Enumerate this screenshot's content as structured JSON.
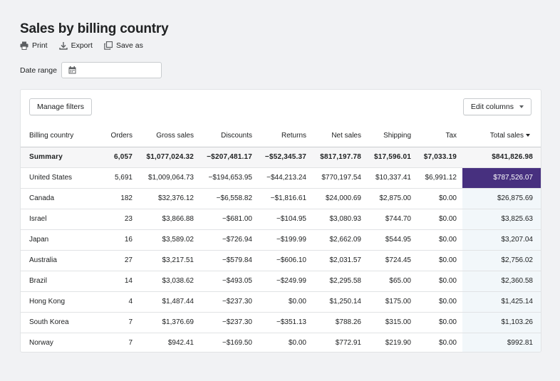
{
  "page": {
    "title": "Sales by billing country"
  },
  "actions": [
    {
      "label": "Print",
      "icon": "printer-icon"
    },
    {
      "label": "Export",
      "icon": "download-icon"
    },
    {
      "label": "Save as",
      "icon": "duplicate-icon"
    }
  ],
  "date_range": {
    "label": "Date range",
    "value": ""
  },
  "toolbar": {
    "manage_filters": "Manage filters",
    "edit_columns": "Edit columns"
  },
  "table": {
    "columns": [
      "Billing country",
      "Orders",
      "Gross sales",
      "Discounts",
      "Returns",
      "Net sales",
      "Shipping",
      "Tax",
      "Total sales"
    ],
    "summary": [
      "Summary",
      "6,057",
      "$1,077,024.32",
      "−$207,481.17",
      "−$52,345.37",
      "$817,197.78",
      "$17,596.01",
      "$7,033.19",
      "$841,826.98"
    ],
    "rows": [
      [
        "United States",
        "5,691",
        "$1,009,064.73",
        "−$194,653.95",
        "−$44,213.24",
        "$770,197.54",
        "$10,337.41",
        "$6,991.12",
        "$787,526.07"
      ],
      [
        "Canada",
        "182",
        "$32,376.12",
        "−$6,558.82",
        "−$1,816.61",
        "$24,000.69",
        "$2,875.00",
        "$0.00",
        "$26,875.69"
      ],
      [
        "Israel",
        "23",
        "$3,866.88",
        "−$681.00",
        "−$104.95",
        "$3,080.93",
        "$744.70",
        "$0.00",
        "$3,825.63"
      ],
      [
        "Japan",
        "16",
        "$3,589.02",
        "−$726.94",
        "−$199.99",
        "$2,662.09",
        "$544.95",
        "$0.00",
        "$3,207.04"
      ],
      [
        "Australia",
        "27",
        "$3,217.51",
        "−$579.84",
        "−$606.10",
        "$2,031.57",
        "$724.45",
        "$0.00",
        "$2,756.02"
      ],
      [
        "Brazil",
        "14",
        "$3,038.62",
        "−$493.05",
        "−$249.99",
        "$2,295.58",
        "$65.00",
        "$0.00",
        "$2,360.58"
      ],
      [
        "Hong Kong",
        "4",
        "$1,487.44",
        "−$237.30",
        "$0.00",
        "$1,250.14",
        "$175.00",
        "$0.00",
        "$1,425.14"
      ],
      [
        "South Korea",
        "7",
        "$1,376.69",
        "−$237.30",
        "−$351.13",
        "$788.26",
        "$315.00",
        "$0.00",
        "$1,103.26"
      ],
      [
        "Norway",
        "7",
        "$942.41",
        "−$169.50",
        "$0.00",
        "$772.91",
        "$219.90",
        "$0.00",
        "$992.81"
      ]
    ]
  },
  "colors": {
    "highlight": "#47307f",
    "total_column_bg": "#f2f7fa"
  }
}
